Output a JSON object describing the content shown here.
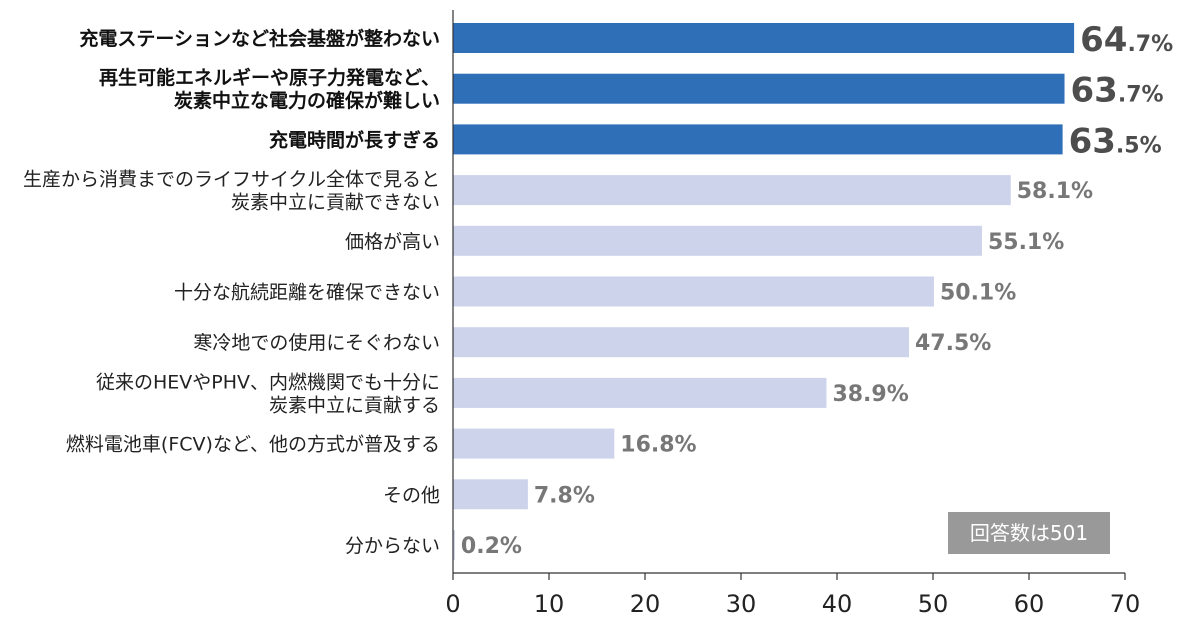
{
  "chart_data": {
    "type": "bar",
    "orientation": "horizontal",
    "categories": [
      [
        "充電ステーションなど社会基盤が整わない"
      ],
      [
        "再生可能エネルギーや原子力発電など、",
        "炭素中立な電力の確保が難しい"
      ],
      [
        "充電時間が長すぎる"
      ],
      [
        "生産から消費までのライフサイクル全体で見ると",
        "炭素中立に貢献できない"
      ],
      [
        "価格が高い"
      ],
      [
        "十分な航続距離を確保できない"
      ],
      [
        "寒冷地での使用にそぐわない"
      ],
      [
        "従来のHEVやPHV、内燃機関でも十分に",
        "炭素中立に貢献する"
      ],
      [
        "燃料電池車(FCV)など、他の方式が普及する"
      ],
      [
        "その他"
      ],
      [
        "分からない"
      ]
    ],
    "values": [
      64.7,
      63.7,
      63.5,
      58.1,
      55.1,
      50.1,
      47.5,
      38.9,
      16.8,
      7.8,
      0.2
    ],
    "value_labels": [
      "64.7%",
      "63.7%",
      "63.5%",
      "58.1%",
      "55.1%",
      "50.1%",
      "47.5%",
      "38.9%",
      "16.8%",
      "7.8%",
      "0.2%"
    ],
    "highlighted_count": 3,
    "xlim": [
      0,
      70
    ],
    "x_ticks": [
      0,
      10,
      20,
      30,
      40,
      50,
      60,
      70
    ],
    "x_tick_labels": [
      "0",
      "10",
      "20",
      "30",
      "40",
      "50",
      "60",
      "70"
    ],
    "grid": false,
    "colors": {
      "highlight": "#2e6fb8",
      "normal": "#cdd3ea",
      "axis": "#333333",
      "note_bg": "#999999"
    },
    "note": "回答数は501"
  }
}
